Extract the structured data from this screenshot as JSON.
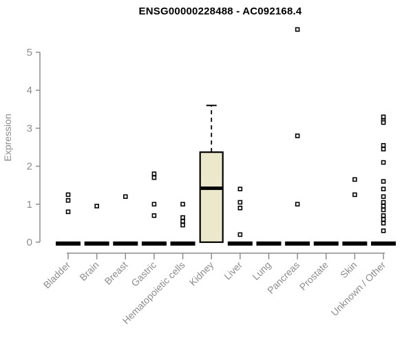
{
  "colors": {
    "axis": "#8C8C8C",
    "axis_text": "#8C8C8C",
    "title_text": "#000000",
    "box_fill": "#ECE8CC",
    "box_stroke": "#000000",
    "median": "#000000",
    "point_stroke": "#000000",
    "point_fill": "#FFFFFF",
    "background": "#FFFFFF"
  },
  "chart_data": {
    "type": "boxplot",
    "title": "ENSG00000228488 - AC092168.4",
    "xlabel": "",
    "ylabel": "Expression",
    "ylim": [
      0,
      5
    ],
    "yticks": [
      "0",
      "1",
      "2",
      "3",
      "4",
      "5"
    ],
    "grid": false,
    "legend": "none",
    "x_tick_rotation_deg": 45,
    "categories": [
      "Bladder",
      "Brain",
      "Breast",
      "Gastric",
      "Hematopoietic cells",
      "Kidney",
      "Liver",
      "Lung",
      "Pancreas",
      "Prostate",
      "Skin",
      "Unknown / Other"
    ],
    "boxes": [
      {
        "category": "Bladder",
        "q1": 0,
        "median": 0,
        "q3": 0,
        "whisker_low": 0,
        "whisker_high": 0,
        "outliers": [
          1.25,
          1.1,
          0.8
        ]
      },
      {
        "category": "Brain",
        "q1": 0,
        "median": 0,
        "q3": 0,
        "whisker_low": 0,
        "whisker_high": 0,
        "outliers": [
          0.95
        ]
      },
      {
        "category": "Breast",
        "q1": 0,
        "median": 0,
        "q3": 0,
        "whisker_low": 0,
        "whisker_high": 0,
        "outliers": [
          1.2
        ]
      },
      {
        "category": "Gastric",
        "q1": 0,
        "median": 0,
        "q3": 0,
        "whisker_low": 0,
        "whisker_high": 0,
        "outliers": [
          1.8,
          1.7,
          1.0,
          0.7
        ]
      },
      {
        "category": "Hematopoietic cells",
        "q1": 0,
        "median": 0,
        "q3": 0,
        "whisker_low": 0,
        "whisker_high": 0,
        "outliers": [
          1.0,
          0.65,
          0.55,
          0.45
        ]
      },
      {
        "category": "Kidney",
        "q1": 0,
        "median": 1.42,
        "q3": 2.37,
        "whisker_low": 0,
        "whisker_high": 3.6,
        "outliers": []
      },
      {
        "category": "Liver",
        "q1": 0,
        "median": 0,
        "q3": 0,
        "whisker_low": 0,
        "whisker_high": 0,
        "outliers": [
          1.4,
          1.05,
          0.9,
          0.2
        ]
      },
      {
        "category": "Lung",
        "q1": 0,
        "median": 0,
        "q3": 0,
        "whisker_low": 0,
        "whisker_high": 0,
        "outliers": []
      },
      {
        "category": "Pancreas",
        "q1": 0,
        "median": 0,
        "q3": 0,
        "whisker_low": 0,
        "whisker_high": 0,
        "outliers": [
          5.6,
          2.8,
          1.0
        ]
      },
      {
        "category": "Prostate",
        "q1": 0,
        "median": 0,
        "q3": 0,
        "whisker_low": 0,
        "whisker_high": 0,
        "outliers": []
      },
      {
        "category": "Skin",
        "q1": 0,
        "median": 0,
        "q3": 0,
        "whisker_low": 0,
        "whisker_high": 0,
        "outliers": [
          1.65,
          1.25
        ]
      },
      {
        "category": "Unknown / Other",
        "q1": 0,
        "median": 0,
        "q3": 0,
        "whisker_low": 0,
        "whisker_high": 0,
        "outliers": [
          3.3,
          3.2,
          3.15,
          2.55,
          2.45,
          2.1,
          1.6,
          1.4,
          1.2,
          1.05,
          0.95,
          0.85,
          0.7,
          0.6,
          0.5,
          0.3
        ]
      }
    ]
  }
}
